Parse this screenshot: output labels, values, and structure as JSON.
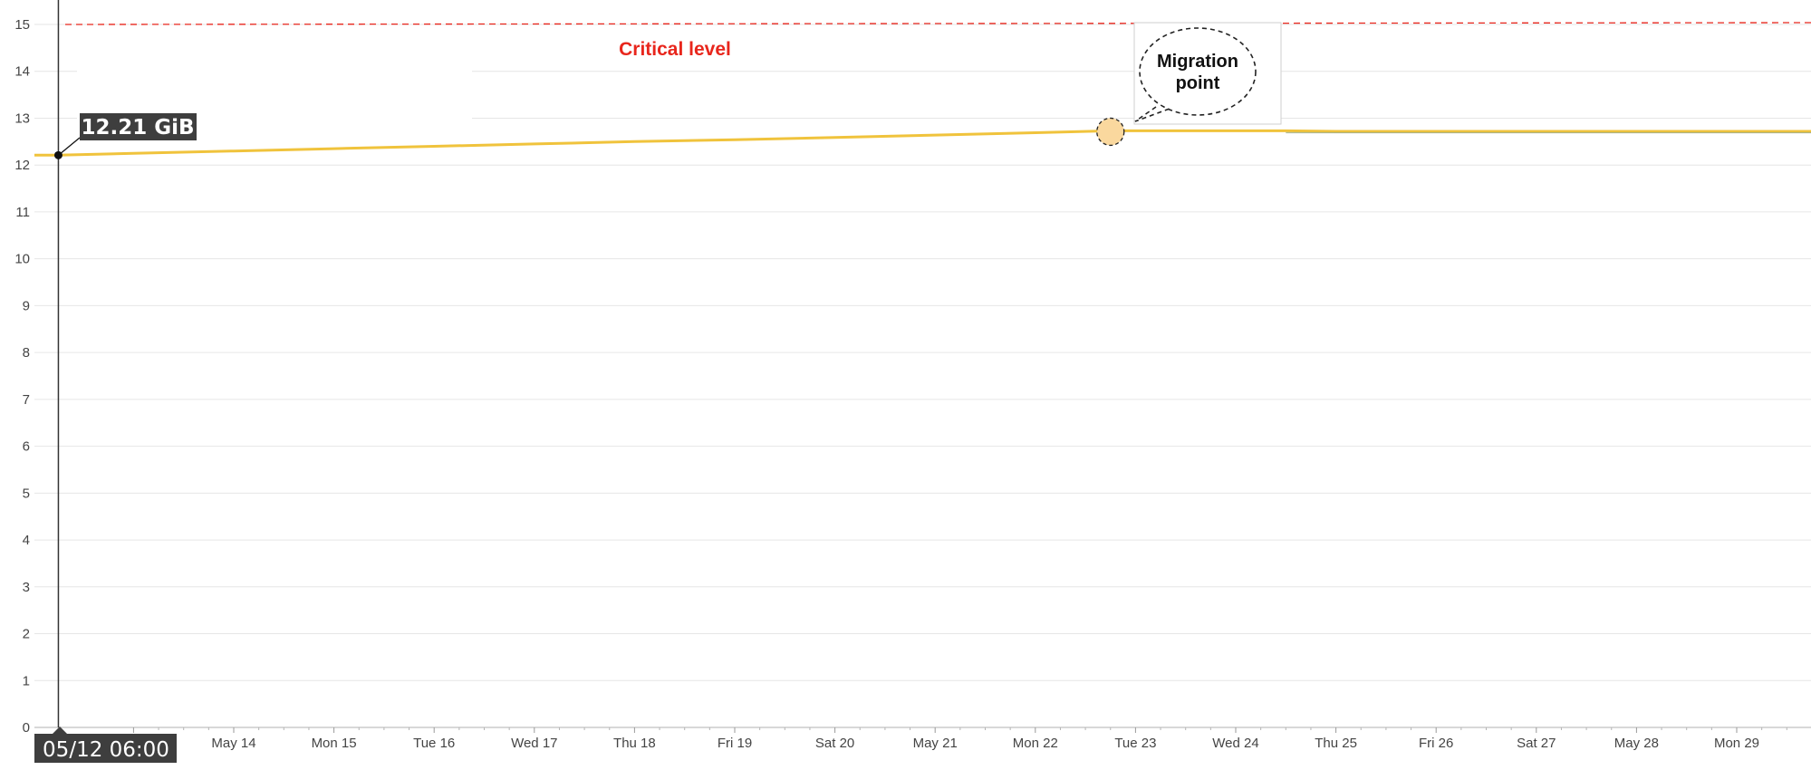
{
  "chart_data": {
    "type": "line",
    "ylim": [
      0,
      15
    ],
    "y_ticks": [
      0,
      1,
      2,
      3,
      4,
      5,
      6,
      7,
      8,
      9,
      10,
      11,
      12,
      13,
      14,
      15
    ],
    "x_ticks": [
      "May 14",
      "Mon 15",
      "Tue 16",
      "Wed 17",
      "Thu 18",
      "Fri 19",
      "Sat 20",
      "May 21",
      "Mon 22",
      "Tue 23",
      "Wed 24",
      "Thu 25",
      "Fri 26",
      "Sat 27",
      "May 28",
      "Mon 29"
    ],
    "grid": true,
    "series": [
      {
        "color": "#f0c33c",
        "x": [
          "05/11 18:00",
          "05/12 06:00",
          "05/13 00:00",
          "05/14 00:00",
          "05/15 00:00",
          "05/16 00:00",
          "05/17 00:00",
          "05/18 00:00",
          "05/19 00:00",
          "05/20 00:00",
          "05/21 00:00",
          "05/22 00:00",
          "05/22 18:00",
          "05/23 00:00",
          "05/24 00:00",
          "05/24 12:00",
          "05/25 00:00",
          "05/27 00:00",
          "05/29 00:00",
          "05/30 00:00"
        ],
        "values": [
          12.21,
          12.21,
          12.25,
          12.3,
          12.35,
          12.4,
          12.45,
          12.5,
          12.54,
          12.59,
          12.64,
          12.69,
          12.73,
          12.73,
          12.73,
          12.73,
          12.72,
          12.72,
          12.72,
          12.72
        ]
      }
    ],
    "threshold": {
      "value": 15,
      "label": "Critical level",
      "color": "#e8261c"
    },
    "annotation": {
      "x": "05/22 18:00",
      "y": 12.73,
      "label": "Migration point"
    },
    "tooltip": {
      "x": "05/12 06:00",
      "value": 12.21,
      "value_label": "12.21 GiB",
      "x_label": "05/12 06:00"
    }
  }
}
